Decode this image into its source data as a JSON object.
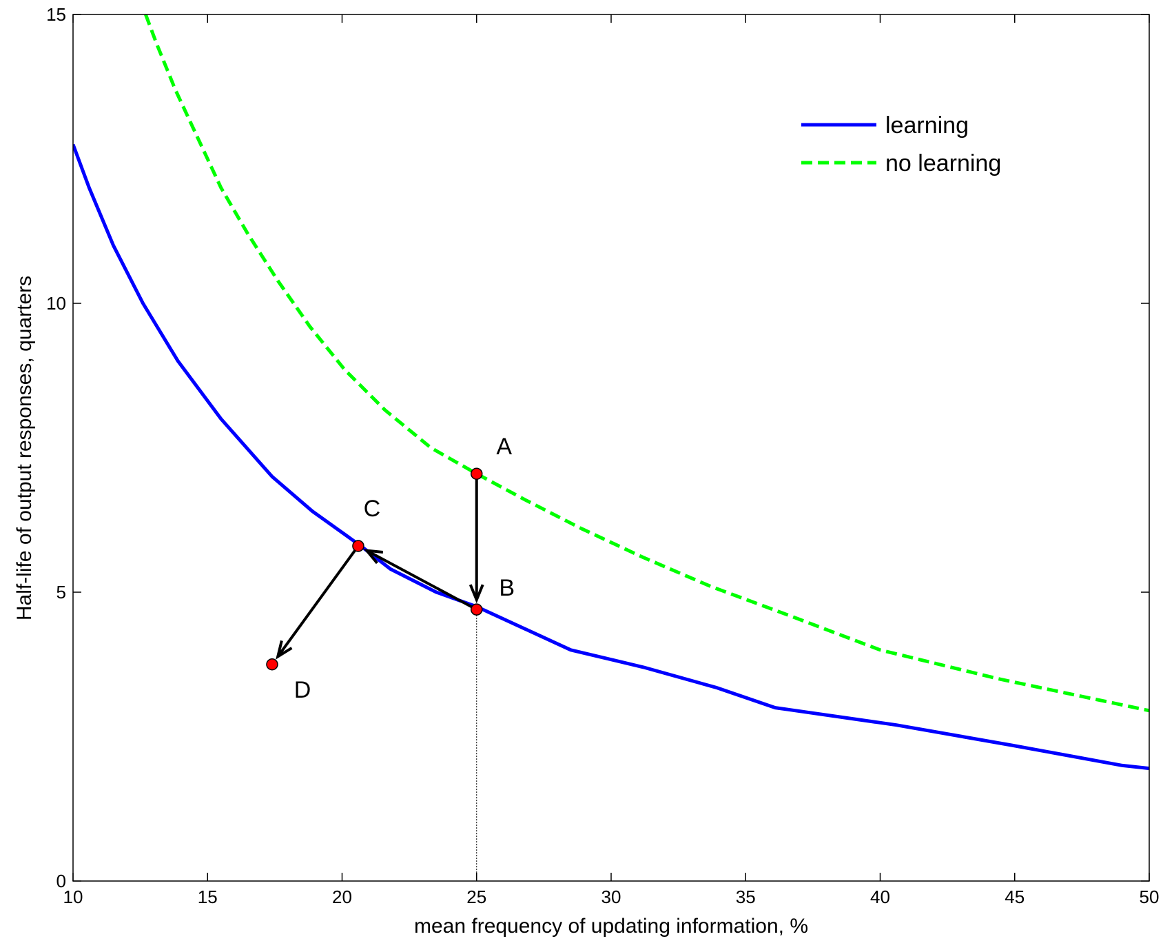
{
  "chart_data": {
    "type": "line",
    "title": "",
    "xlabel": "mean frequency of updating information, %",
    "ylabel": "Half-life of output responses, quarters",
    "xlim": [
      10,
      50
    ],
    "ylim": [
      0,
      15
    ],
    "xticks": [
      10,
      15,
      20,
      25,
      30,
      35,
      40,
      45,
      50
    ],
    "yticks": [
      0,
      5,
      10,
      15
    ],
    "grid": false,
    "legend_position": "top-right",
    "colors": {
      "learning": "#0000ff",
      "no_learning": "#00ff00",
      "points": "#ff0000",
      "arrows": "#000000"
    },
    "series": [
      {
        "name": "learning",
        "style": "solid",
        "x": [
          10,
          10.6,
          11.5,
          12.6,
          13.9,
          15.5,
          17.4,
          18.9,
          20.1,
          20.7,
          21.8,
          23.5,
          25,
          28.5,
          31.2,
          33.9,
          36.1,
          40.6,
          44.9,
          49,
          50
        ],
        "y": [
          12.75,
          12,
          11,
          10,
          9,
          8,
          7,
          6.4,
          6.0,
          5.8,
          5.4,
          5.0,
          4.75,
          4.0,
          3.7,
          3.35,
          3.0,
          2.7,
          2.35,
          2.0,
          1.95
        ]
      },
      {
        "name": "no learning",
        "style": "dashed",
        "x": [
          12.7,
          13.1,
          13.8,
          14.6,
          15.5,
          16.5,
          17.6,
          18.8,
          20.1,
          21.6,
          23.3,
          25,
          26.8,
          28.9,
          31.2,
          33.7,
          36.6,
          40,
          44.4,
          50
        ],
        "y": [
          15,
          14.5,
          13.7,
          12.9,
          12.0,
          11.2,
          10.4,
          9.6,
          8.85,
          8.15,
          7.5,
          7.05,
          6.6,
          6.1,
          5.6,
          5.1,
          4.6,
          4.0,
          3.5,
          2.95
        ]
      }
    ],
    "points": [
      {
        "label": "A",
        "x": 25,
        "y": 7.05
      },
      {
        "label": "B",
        "x": 25,
        "y": 4.7
      },
      {
        "label": "C",
        "x": 20.6,
        "y": 5.8
      },
      {
        "label": "D",
        "x": 17.4,
        "y": 3.75
      }
    ],
    "arrows": [
      {
        "from": "A",
        "to": "B"
      },
      {
        "from": "B",
        "to": "C"
      },
      {
        "from": "C",
        "to": "D"
      }
    ],
    "reference_line": {
      "x": 25,
      "style": "dotted"
    }
  }
}
